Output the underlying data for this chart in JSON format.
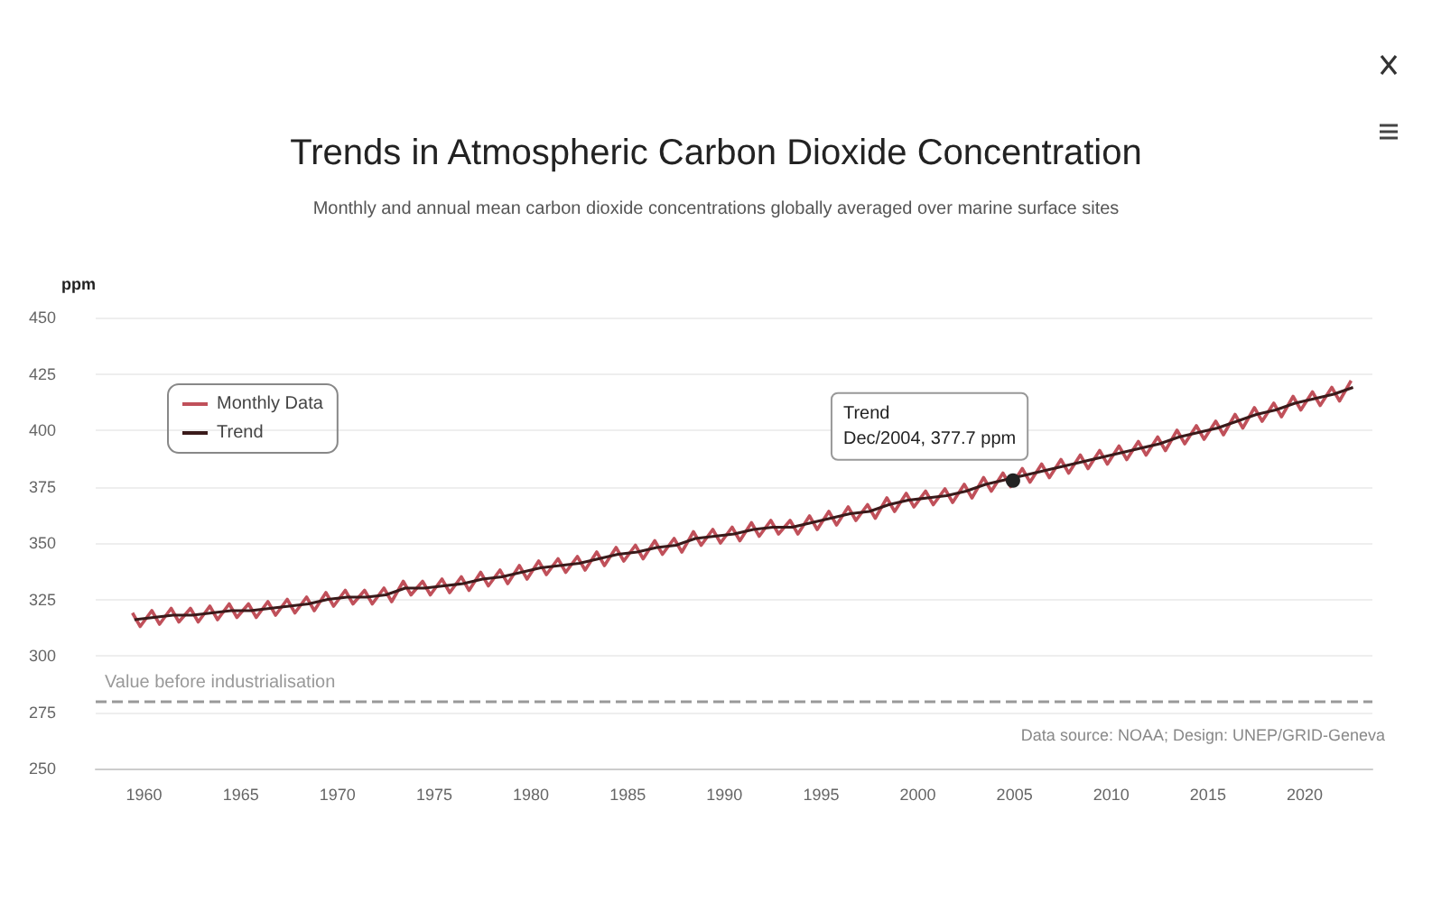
{
  "chart_data": {
    "type": "line",
    "title": "Trends in Atmospheric Carbon Dioxide Concentration",
    "subtitle": "Monthly and annual mean carbon dioxide concentrations globally averaged over marine surface sites",
    "ylabel": "ppm",
    "xlim": [
      1957.5,
      2023.5
    ],
    "xticks": [
      1960,
      1965,
      1970,
      1975,
      1980,
      1985,
      1990,
      1995,
      2000,
      2005,
      2010,
      2015,
      2020
    ],
    "ylim": [
      250,
      450
    ],
    "yticks": [
      250,
      275,
      300,
      325,
      350,
      375,
      400,
      425,
      450
    ],
    "grid": "y",
    "legend": "top left",
    "marker": "none",
    "series": [
      {
        "name": "Monthly Data",
        "color": "#c0505a",
        "x": [
          1959.4,
          1959.8,
          1960.4,
          1960.8,
          1961.4,
          1961.8,
          1962.4,
          1962.8,
          1963.4,
          1963.8,
          1964.4,
          1964.8,
          1965.4,
          1965.8,
          1966.4,
          1966.8,
          1967.4,
          1967.8,
          1968.4,
          1968.8,
          1969.4,
          1969.8,
          1970.4,
          1970.8,
          1971.4,
          1971.8,
          1972.4,
          1972.8,
          1973.4,
          1973.8,
          1974.4,
          1974.8,
          1975.4,
          1975.8,
          1976.4,
          1976.8,
          1977.4,
          1977.8,
          1978.4,
          1978.8,
          1979.4,
          1979.8,
          1980.4,
          1980.8,
          1981.4,
          1981.8,
          1982.4,
          1982.8,
          1983.4,
          1983.8,
          1984.4,
          1984.8,
          1985.4,
          1985.8,
          1986.4,
          1986.8,
          1987.4,
          1987.8,
          1988.4,
          1988.8,
          1989.4,
          1989.8,
          1990.4,
          1990.8,
          1991.4,
          1991.8,
          1992.4,
          1992.8,
          1993.4,
          1993.8,
          1994.4,
          1994.8,
          1995.4,
          1995.8,
          1996.4,
          1996.8,
          1997.4,
          1997.8,
          1998.4,
          1998.8,
          1999.4,
          1999.8,
          2000.4,
          2000.8,
          2001.4,
          2001.8,
          2002.4,
          2002.8,
          2003.4,
          2003.8,
          2004.4,
          2004.8,
          2005.4,
          2005.8,
          2006.4,
          2006.8,
          2007.4,
          2007.8,
          2008.4,
          2008.8,
          2009.4,
          2009.8,
          2010.4,
          2010.8,
          2011.4,
          2011.8,
          2012.4,
          2012.8,
          2013.4,
          2013.8,
          2014.4,
          2014.8,
          2015.4,
          2015.8,
          2016.4,
          2016.8,
          2017.4,
          2017.8,
          2018.4,
          2018.8,
          2019.4,
          2019.8,
          2020.4,
          2020.8,
          2021.4,
          2021.8,
          2022.4
        ],
        "values": [
          319,
          313,
          320,
          314,
          321,
          315,
          321,
          315,
          322,
          316,
          323,
          317,
          323,
          317,
          324,
          318,
          325,
          319,
          326,
          320,
          328,
          322,
          329,
          323,
          329,
          323,
          330,
          324,
          333,
          327,
          333,
          327,
          334,
          328,
          335,
          329,
          337,
          331,
          338,
          332,
          340,
          334,
          342,
          336,
          343,
          337,
          344,
          338,
          346,
          340,
          348,
          342,
          349,
          343,
          351,
          345,
          352,
          346,
          355,
          349,
          356,
          350,
          357,
          351,
          359,
          353,
          360,
          354,
          360,
          354,
          362,
          356,
          364,
          358,
          366,
          360,
          367,
          361,
          370,
          364,
          372,
          366,
          373,
          367,
          374,
          368,
          376,
          370,
          379,
          373,
          381,
          375,
          383,
          377,
          385,
          379,
          387,
          381,
          389,
          383,
          391,
          385,
          393,
          387,
          395,
          389,
          397,
          391,
          400,
          394,
          402,
          396,
          404,
          398,
          407,
          401,
          410,
          404,
          412,
          406,
          415,
          409,
          417,
          411,
          419,
          413,
          422
        ]
      },
      {
        "name": "Trend",
        "color": "#3a1a1a",
        "x": [
          1959.5,
          1960.5,
          1961.5,
          1962.5,
          1963.5,
          1964.5,
          1965.5,
          1966.5,
          1967.5,
          1968.5,
          1969.5,
          1970.5,
          1971.5,
          1972.5,
          1973.5,
          1974.5,
          1975.5,
          1976.5,
          1977.5,
          1978.5,
          1979.5,
          1980.5,
          1981.5,
          1982.5,
          1983.5,
          1984.5,
          1985.5,
          1986.5,
          1987.5,
          1988.5,
          1989.5,
          1990.5,
          1991.5,
          1992.5,
          1993.5,
          1994.5,
          1995.5,
          1996.5,
          1997.5,
          1998.5,
          1999.5,
          2000.5,
          2001.5,
          2002.5,
          2003.5,
          2004.5,
          2005.5,
          2006.5,
          2007.5,
          2008.5,
          2009.5,
          2010.5,
          2011.5,
          2012.5,
          2013.5,
          2014.5,
          2015.5,
          2016.5,
          2017.5,
          2018.5,
          2019.5,
          2020.5,
          2021.5,
          2022.5
        ],
        "values": [
          316,
          317,
          318,
          318,
          319,
          320,
          320,
          321,
          322,
          323,
          325,
          326,
          326,
          327,
          330,
          330,
          331,
          332,
          334,
          335,
          337,
          339,
          340,
          341,
          343,
          345,
          346,
          348,
          349,
          352,
          353,
          354,
          356,
          357,
          357,
          359,
          361,
          363,
          364,
          367,
          369,
          370,
          371,
          373,
          376,
          378,
          380,
          382,
          384,
          386,
          388,
          390,
          392,
          394,
          397,
          399,
          401,
          404,
          407,
          409,
          412,
          414,
          416,
          419
        ]
      }
    ],
    "ref_lines": [
      {
        "axis": "y",
        "value": 280,
        "label": "Value before industrialisation",
        "color": "#999999",
        "line_style": "dashed"
      }
    ],
    "annotations": [
      {
        "text": "Trend\nDec/2004, 377.7 ppm",
        "x": 2004.92,
        "y": 377.7
      },
      "Data source: NOAA; Design: UNEP/GRID-Geneva"
    ]
  }
}
